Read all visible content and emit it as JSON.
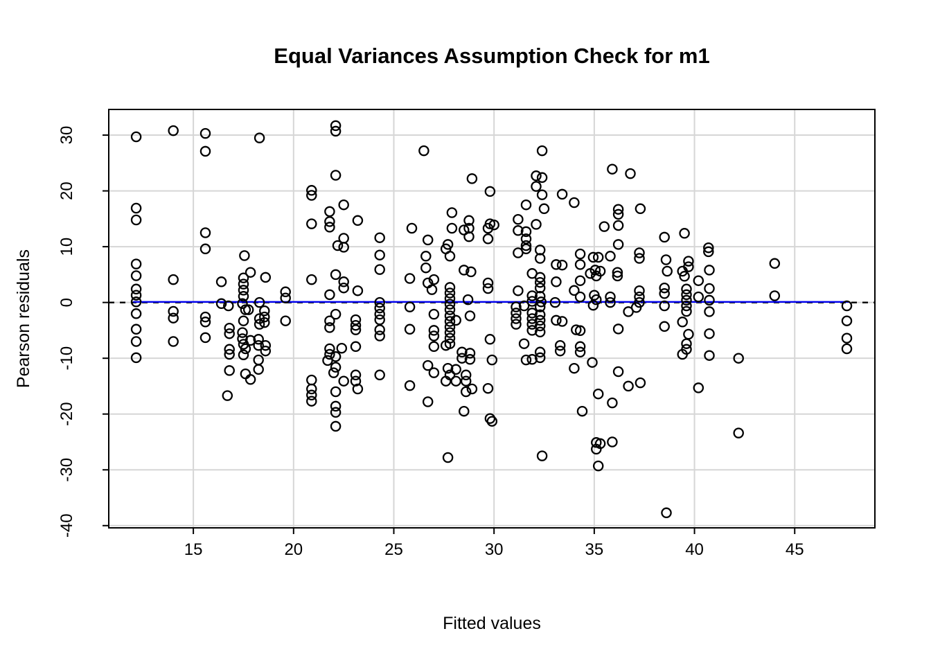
{
  "chart_data": {
    "type": "scatter",
    "title": "Equal Variances Assumption Check for m1",
    "xlabel": "Fitted values",
    "ylabel": "Pearson residuals",
    "marker": "open-circle",
    "grid": true,
    "legend": "none",
    "axes": {
      "x_domain": [
        10.78,
        49.0
      ],
      "y_domain": [
        -40.4,
        34.6
      ],
      "x_ticks": [
        15,
        20,
        25,
        30,
        35,
        40,
        45
      ],
      "y_ticks": [
        -40,
        -30,
        -20,
        -10,
        0,
        10,
        20,
        30
      ]
    },
    "reference_lines": [
      {
        "name": "zero-line",
        "y": 0,
        "x1": 10.78,
        "x2": 49.0,
        "style": "dashed",
        "color": "#000000"
      },
      {
        "name": "smoother-line",
        "y": 0.1,
        "x1": 12.0,
        "x2": 47.7,
        "style": "solid",
        "color": "#0000EE"
      }
    ],
    "colors": {
      "point_stroke": "#000000",
      "grid": "#d6d6d6",
      "box": "#000000",
      "smoother": "#0000EE"
    },
    "points": [
      [
        12.15,
        29.7
      ],
      [
        12.15,
        16.9
      ],
      [
        12.15,
        14.8
      ],
      [
        12.15,
        6.9
      ],
      [
        12.15,
        4.8
      ],
      [
        12.15,
        2.4
      ],
      [
        12.15,
        1.3
      ],
      [
        12.15,
        0.1
      ],
      [
        12.15,
        -2.0
      ],
      [
        12.15,
        -4.8
      ],
      [
        12.15,
        -7.0
      ],
      [
        12.15,
        -9.9
      ],
      [
        14.0,
        30.8
      ],
      [
        14.0,
        4.1
      ],
      [
        14.0,
        -1.6
      ],
      [
        14.0,
        -2.8
      ],
      [
        14.0,
        -7.0
      ],
      [
        15.6,
        30.3
      ],
      [
        15.6,
        27.1
      ],
      [
        15.6,
        12.5
      ],
      [
        15.6,
        9.6
      ],
      [
        15.6,
        -2.6
      ],
      [
        15.6,
        -3.5
      ],
      [
        15.6,
        -6.3
      ],
      [
        16.4,
        3.7
      ],
      [
        16.4,
        -0.2
      ],
      [
        16.75,
        -0.6
      ],
      [
        16.8,
        -4.6
      ],
      [
        16.8,
        -5.6
      ],
      [
        16.8,
        -8.4
      ],
      [
        16.8,
        -9.3
      ],
      [
        16.8,
        -12.2
      ],
      [
        16.7,
        -16.7
      ],
      [
        17.55,
        8.4
      ],
      [
        17.85,
        5.4
      ],
      [
        17.5,
        4.4
      ],
      [
        17.5,
        3.3
      ],
      [
        17.5,
        2.2
      ],
      [
        17.5,
        1.1
      ],
      [
        17.45,
        -0.2
      ],
      [
        17.6,
        -1.3
      ],
      [
        17.75,
        -1.3
      ],
      [
        17.5,
        -3.3
      ],
      [
        17.45,
        -5.4
      ],
      [
        17.45,
        -6.5
      ],
      [
        17.85,
        -6.8
      ],
      [
        17.5,
        -7.5
      ],
      [
        17.6,
        -8.3
      ],
      [
        17.5,
        -9.4
      ],
      [
        17.6,
        -12.8
      ],
      [
        17.85,
        -13.8
      ],
      [
        18.3,
        29.5
      ],
      [
        18.6,
        4.5
      ],
      [
        18.3,
        0.0
      ],
      [
        18.55,
        -1.5
      ],
      [
        18.55,
        -2.6
      ],
      [
        18.3,
        -2.9
      ],
      [
        18.55,
        -3.6
      ],
      [
        18.3,
        -3.9
      ],
      [
        18.25,
        -6.6
      ],
      [
        18.25,
        -7.7
      ],
      [
        18.6,
        -7.7
      ],
      [
        18.6,
        -8.7
      ],
      [
        18.25,
        -10.3
      ],
      [
        18.25,
        -12.0
      ],
      [
        19.6,
        1.9
      ],
      [
        19.6,
        0.8
      ],
      [
        19.6,
        -3.3
      ],
      [
        20.9,
        20.1
      ],
      [
        20.9,
        19.2
      ],
      [
        20.9,
        14.1
      ],
      [
        20.9,
        4.1
      ],
      [
        20.9,
        -13.9
      ],
      [
        20.9,
        -15.5
      ],
      [
        20.9,
        -16.6
      ],
      [
        20.9,
        -17.7
      ],
      [
        22.1,
        31.7
      ],
      [
        22.1,
        30.7
      ],
      [
        22.1,
        22.8
      ],
      [
        22.5,
        17.5
      ],
      [
        21.8,
        16.3
      ],
      [
        21.8,
        14.5
      ],
      [
        21.8,
        13.5
      ],
      [
        22.5,
        11.5
      ],
      [
        22.2,
        10.2
      ],
      [
        22.5,
        9.9
      ],
      [
        22.1,
        5.0
      ],
      [
        22.5,
        3.7
      ],
      [
        22.5,
        2.6
      ],
      [
        21.8,
        1.4
      ],
      [
        22.1,
        -2.1
      ],
      [
        21.8,
        -3.3
      ],
      [
        21.8,
        -4.5
      ],
      [
        22.4,
        -8.2
      ],
      [
        21.8,
        -8.3
      ],
      [
        21.8,
        -9.3
      ],
      [
        22.1,
        -9.7
      ],
      [
        21.7,
        -10.4
      ],
      [
        22.1,
        -11.6
      ],
      [
        22.0,
        -12.6
      ],
      [
        22.5,
        -14.1
      ],
      [
        22.1,
        -16.0
      ],
      [
        22.1,
        -18.6
      ],
      [
        22.1,
        -19.7
      ],
      [
        22.1,
        -22.2
      ],
      [
        23.2,
        14.7
      ],
      [
        23.2,
        2.1
      ],
      [
        23.1,
        -3.1
      ],
      [
        23.1,
        -4.1
      ],
      [
        23.1,
        -4.9
      ],
      [
        23.1,
        -7.9
      ],
      [
        23.1,
        -13.0
      ],
      [
        23.1,
        -14.1
      ],
      [
        23.2,
        -15.5
      ],
      [
        24.3,
        11.6
      ],
      [
        24.3,
        8.5
      ],
      [
        24.3,
        5.9
      ],
      [
        24.3,
        0.0
      ],
      [
        24.3,
        -1.0
      ],
      [
        24.3,
        -2.1
      ],
      [
        24.3,
        -3.1
      ],
      [
        24.3,
        -4.9
      ],
      [
        24.3,
        -6.0
      ],
      [
        24.3,
        -13.0
      ],
      [
        25.9,
        13.3
      ],
      [
        25.8,
        4.3
      ],
      [
        25.8,
        -0.8
      ],
      [
        25.8,
        -4.8
      ],
      [
        25.8,
        -14.9
      ],
      [
        26.5,
        27.2
      ],
      [
        26.7,
        11.2
      ],
      [
        26.6,
        8.3
      ],
      [
        26.6,
        6.2
      ],
      [
        27.0,
        4.1
      ],
      [
        26.7,
        3.5
      ],
      [
        26.9,
        2.3
      ],
      [
        27.0,
        -2.1
      ],
      [
        27.0,
        -5.0
      ],
      [
        27.0,
        -6.0
      ],
      [
        27.0,
        -7.9
      ],
      [
        26.7,
        -11.3
      ],
      [
        27.0,
        -12.6
      ],
      [
        26.7,
        -17.8
      ],
      [
        27.9,
        16.1
      ],
      [
        27.9,
        13.3
      ],
      [
        27.7,
        10.4
      ],
      [
        27.6,
        9.6
      ],
      [
        27.8,
        8.3
      ],
      [
        27.8,
        2.7
      ],
      [
        27.8,
        1.7
      ],
      [
        27.8,
        0.7
      ],
      [
        27.8,
        -0.3
      ],
      [
        27.8,
        -1.3
      ],
      [
        27.8,
        -2.4
      ],
      [
        28.1,
        -3.2
      ],
      [
        27.8,
        -3.4
      ],
      [
        27.8,
        -4.4
      ],
      [
        27.8,
        -5.4
      ],
      [
        27.8,
        -6.4
      ],
      [
        27.8,
        -7.4
      ],
      [
        27.6,
        -7.7
      ],
      [
        27.7,
        -11.8
      ],
      [
        28.1,
        -12.0
      ],
      [
        27.8,
        -13.0
      ],
      [
        27.6,
        -14.1
      ],
      [
        28.1,
        -14.1
      ],
      [
        27.7,
        -27.8
      ],
      [
        28.9,
        22.2
      ],
      [
        28.75,
        14.7
      ],
      [
        28.75,
        13.3
      ],
      [
        28.5,
        13.0
      ],
      [
        28.75,
        11.8
      ],
      [
        28.5,
        5.8
      ],
      [
        28.85,
        5.5
      ],
      [
        28.7,
        0.5
      ],
      [
        28.8,
        -2.4
      ],
      [
        28.4,
        -8.9
      ],
      [
        28.8,
        -9.1
      ],
      [
        28.4,
        -10.0
      ],
      [
        28.8,
        -10.2
      ],
      [
        28.6,
        -13.0
      ],
      [
        28.6,
        -14.1
      ],
      [
        28.9,
        -15.5
      ],
      [
        28.6,
        -16.0
      ],
      [
        28.5,
        -19.5
      ],
      [
        29.8,
        19.9
      ],
      [
        29.7,
        3.5
      ],
      [
        29.7,
        2.5
      ],
      [
        29.8,
        -6.6
      ],
      [
        29.9,
        -10.3
      ],
      [
        29.7,
        -15.4
      ],
      [
        29.8,
        -20.8
      ],
      [
        29.9,
        -21.3
      ],
      [
        29.7,
        13.3
      ],
      [
        29.8,
        14.1
      ],
      [
        30.0,
        13.9
      ],
      [
        29.7,
        11.4
      ],
      [
        31.2,
        14.9
      ],
      [
        31.2,
        12.9
      ],
      [
        31.6,
        17.5
      ],
      [
        31.6,
        12.7
      ],
      [
        31.6,
        11.4
      ],
      [
        31.6,
        10.2
      ],
      [
        31.2,
        8.9
      ],
      [
        31.6,
        9.6
      ],
      [
        31.2,
        2.1
      ],
      [
        31.1,
        -0.8
      ],
      [
        31.5,
        -0.6
      ],
      [
        31.1,
        -1.9
      ],
      [
        31.1,
        -2.9
      ],
      [
        31.1,
        -3.9
      ],
      [
        31.5,
        -7.4
      ],
      [
        31.6,
        -10.3
      ],
      [
        32.4,
        27.2
      ],
      [
        32.1,
        22.7
      ],
      [
        32.4,
        22.4
      ],
      [
        32.1,
        20.8
      ],
      [
        32.4,
        19.3
      ],
      [
        32.5,
        16.8
      ],
      [
        32.1,
        14.0
      ],
      [
        32.3,
        9.4
      ],
      [
        32.3,
        7.9
      ],
      [
        31.9,
        5.2
      ],
      [
        32.3,
        4.5
      ],
      [
        32.3,
        3.6
      ],
      [
        32.3,
        2.6
      ],
      [
        31.9,
        1.2
      ],
      [
        32.3,
        1.1
      ],
      [
        31.9,
        0.2
      ],
      [
        32.35,
        0.1
      ],
      [
        32.3,
        -0.8
      ],
      [
        31.9,
        -1.9
      ],
      [
        32.3,
        -2.2
      ],
      [
        31.9,
        -2.9
      ],
      [
        32.3,
        -3.2
      ],
      [
        31.9,
        -3.9
      ],
      [
        32.3,
        -4.2
      ],
      [
        31.9,
        -5.0
      ],
      [
        32.3,
        -5.3
      ],
      [
        32.3,
        -8.9
      ],
      [
        32.3,
        -9.9
      ],
      [
        31.9,
        -10.2
      ],
      [
        32.4,
        -27.5
      ],
      [
        33.4,
        19.4
      ],
      [
        33.1,
        6.8
      ],
      [
        33.4,
        6.7
      ],
      [
        33.1,
        3.7
      ],
      [
        33.05,
        0.0
      ],
      [
        33.1,
        -3.2
      ],
      [
        33.4,
        -3.4
      ],
      [
        33.3,
        -7.7
      ],
      [
        33.3,
        -8.7
      ],
      [
        34.0,
        17.9
      ],
      [
        34.3,
        8.7
      ],
      [
        34.3,
        6.8
      ],
      [
        34.3,
        3.9
      ],
      [
        34.0,
        2.15
      ],
      [
        34.3,
        1.0
      ],
      [
        34.1,
        -4.9
      ],
      [
        34.3,
        -5.05
      ],
      [
        34.3,
        -7.9
      ],
      [
        34.3,
        -8.9
      ],
      [
        34.9,
        -10.75
      ],
      [
        34.0,
        -11.8
      ],
      [
        34.4,
        -19.5
      ],
      [
        34.95,
        8.1
      ],
      [
        35.2,
        8.1
      ],
      [
        35.05,
        5.8
      ],
      [
        35.3,
        5.6
      ],
      [
        34.8,
        5.2
      ],
      [
        35.1,
        4.75
      ],
      [
        35.0,
        1.3
      ],
      [
        35.1,
        0.5
      ],
      [
        34.95,
        -0.5
      ],
      [
        35.5,
        13.6
      ],
      [
        35.2,
        -16.4
      ],
      [
        35.1,
        -25.1
      ],
      [
        35.3,
        -25.3
      ],
      [
        35.1,
        -26.3
      ],
      [
        35.2,
        -29.3
      ],
      [
        35.9,
        23.9
      ],
      [
        36.2,
        16.7
      ],
      [
        36.2,
        15.8
      ],
      [
        36.2,
        13.8
      ],
      [
        36.2,
        10.4
      ],
      [
        35.8,
        8.3
      ],
      [
        36.16,
        5.4
      ],
      [
        36.16,
        4.75
      ],
      [
        35.8,
        1.0
      ],
      [
        35.8,
        0.0
      ],
      [
        36.7,
        -1.65
      ],
      [
        36.2,
        -4.75
      ],
      [
        36.2,
        -12.4
      ],
      [
        36.7,
        -15.0
      ],
      [
        35.9,
        -18.0
      ],
      [
        35.9,
        -25.0
      ],
      [
        36.8,
        23.1
      ],
      [
        37.3,
        16.8
      ],
      [
        37.25,
        8.9
      ],
      [
        37.25,
        7.9
      ],
      [
        37.25,
        2.1
      ],
      [
        37.25,
        1.0
      ],
      [
        37.25,
        0.0
      ],
      [
        37.1,
        -0.9
      ],
      [
        37.3,
        -14.4
      ],
      [
        38.5,
        11.7
      ],
      [
        38.58,
        7.65
      ],
      [
        38.64,
        5.6
      ],
      [
        38.5,
        2.6
      ],
      [
        38.5,
        1.6
      ],
      [
        38.5,
        -0.6
      ],
      [
        38.5,
        -4.3
      ],
      [
        38.6,
        -37.7
      ],
      [
        39.5,
        12.4
      ],
      [
        39.7,
        7.4
      ],
      [
        39.7,
        6.4
      ],
      [
        39.4,
        5.6
      ],
      [
        39.5,
        4.7
      ],
      [
        39.6,
        2.4
      ],
      [
        39.6,
        1.4
      ],
      [
        39.6,
        0.4
      ],
      [
        39.6,
        -0.6
      ],
      [
        39.6,
        -1.6
      ],
      [
        39.4,
        -3.5
      ],
      [
        39.7,
        -5.7
      ],
      [
        39.6,
        -7.4
      ],
      [
        39.6,
        -8.4
      ],
      [
        39.4,
        -9.3
      ],
      [
        40.7,
        9.8
      ],
      [
        40.7,
        9.1
      ],
      [
        40.74,
        5.8
      ],
      [
        40.2,
        3.9
      ],
      [
        40.74,
        2.5
      ],
      [
        40.2,
        1.0
      ],
      [
        40.74,
        0.4
      ],
      [
        40.74,
        -1.65
      ],
      [
        40.74,
        -5.6
      ],
      [
        40.74,
        -9.5
      ],
      [
        40.2,
        -15.3
      ],
      [
        42.2,
        -10.0
      ],
      [
        42.2,
        -23.4
      ],
      [
        44.0,
        7.0
      ],
      [
        44.0,
        1.2
      ],
      [
        47.6,
        -0.6
      ],
      [
        47.6,
        -3.3
      ],
      [
        47.6,
        -6.4
      ],
      [
        47.6,
        -8.3
      ]
    ]
  }
}
